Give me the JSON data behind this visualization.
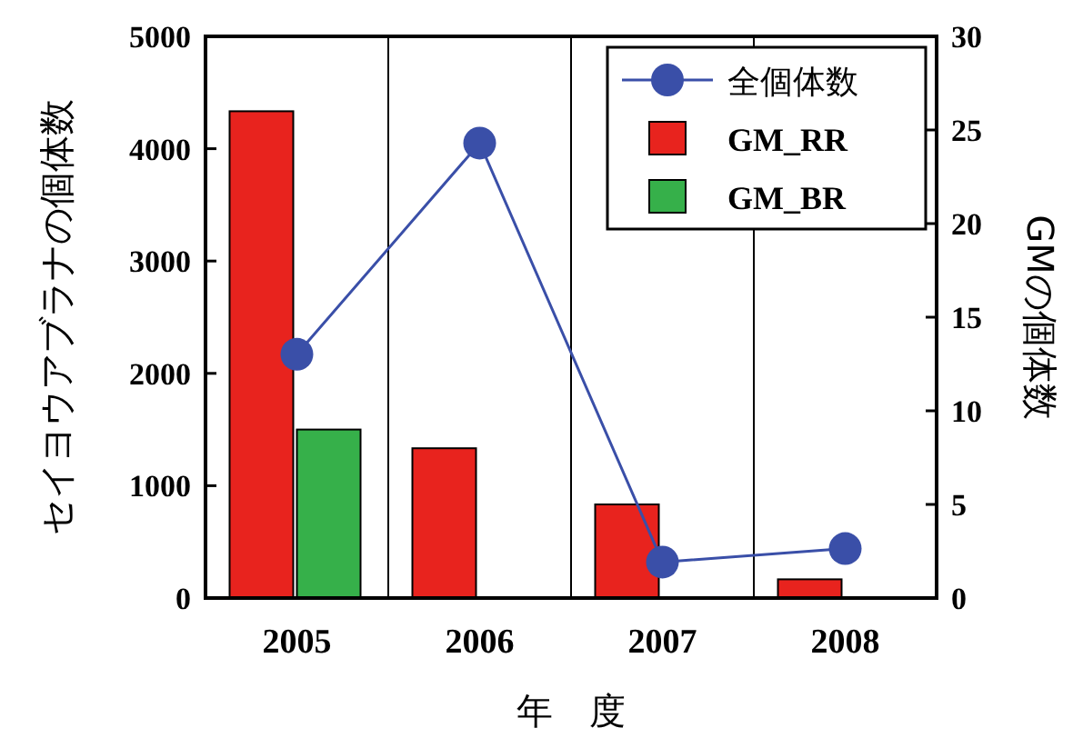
{
  "chart_data": {
    "type": "bar",
    "categories": [
      "2005",
      "2006",
      "2007",
      "2008"
    ],
    "xlabel": "年　度",
    "ylabel": "セイヨウアブラナの個体数",
    "y2label": "GMの個体数",
    "ylim": [
      0,
      5000
    ],
    "yticks": [
      0,
      1000,
      2000,
      3000,
      4000,
      5000
    ],
    "y2lim": [
      0,
      30
    ],
    "y2ticks": [
      0,
      5,
      10,
      15,
      20,
      25,
      30
    ],
    "grid": "x",
    "legend": "top right",
    "marker": "circle",
    "line_style": "solid",
    "series": [
      {
        "name": "全個体数",
        "type": "line",
        "color": "#3a4fa8",
        "values": [
          2170,
          4050,
          320,
          440
        ]
      },
      {
        "name": "GM_RR",
        "axis": "y2",
        "color": "#e8231e",
        "values": [
          26,
          8,
          5,
          1
        ]
      },
      {
        "name": "GM_BR",
        "axis": "y2",
        "color": "#36b04a",
        "values": [
          9,
          null,
          null,
          null
        ]
      }
    ]
  }
}
